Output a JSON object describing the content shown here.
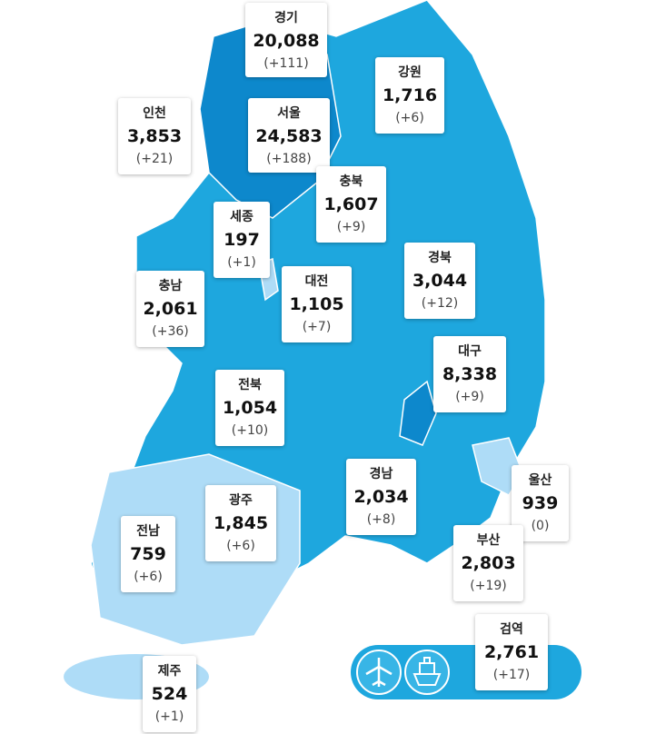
{
  "regions": [
    {
      "name": "경기",
      "total": "20,088",
      "change": "(+111)"
    },
    {
      "name": "강원",
      "total": "1,716",
      "change": "(+6)"
    },
    {
      "name": "인천",
      "total": "3,853",
      "change": "(+21)"
    },
    {
      "name": "서울",
      "total": "24,583",
      "change": "(+188)"
    },
    {
      "name": "충북",
      "total": "1,607",
      "change": "(+9)"
    },
    {
      "name": "세종",
      "total": "197",
      "change": "(+1)"
    },
    {
      "name": "경북",
      "total": "3,044",
      "change": "(+12)"
    },
    {
      "name": "대전",
      "total": "1,105",
      "change": "(+7)"
    },
    {
      "name": "충남",
      "total": "2,061",
      "change": "(+36)"
    },
    {
      "name": "대구",
      "total": "8,338",
      "change": "(+9)"
    },
    {
      "name": "전북",
      "total": "1,054",
      "change": "(+10)"
    },
    {
      "name": "경남",
      "total": "2,034",
      "change": "(+8)"
    },
    {
      "name": "울산",
      "total": "939",
      "change": "(0)"
    },
    {
      "name": "광주",
      "total": "1,845",
      "change": "(+6)"
    },
    {
      "name": "전남",
      "total": "759",
      "change": "(+6)"
    },
    {
      "name": "부산",
      "total": "2,803",
      "change": "(+19)"
    },
    {
      "name": "검역",
      "total": "2,761",
      "change": "(+17)"
    },
    {
      "name": "제주",
      "total": "524",
      "change": "(+1)"
    }
  ]
}
